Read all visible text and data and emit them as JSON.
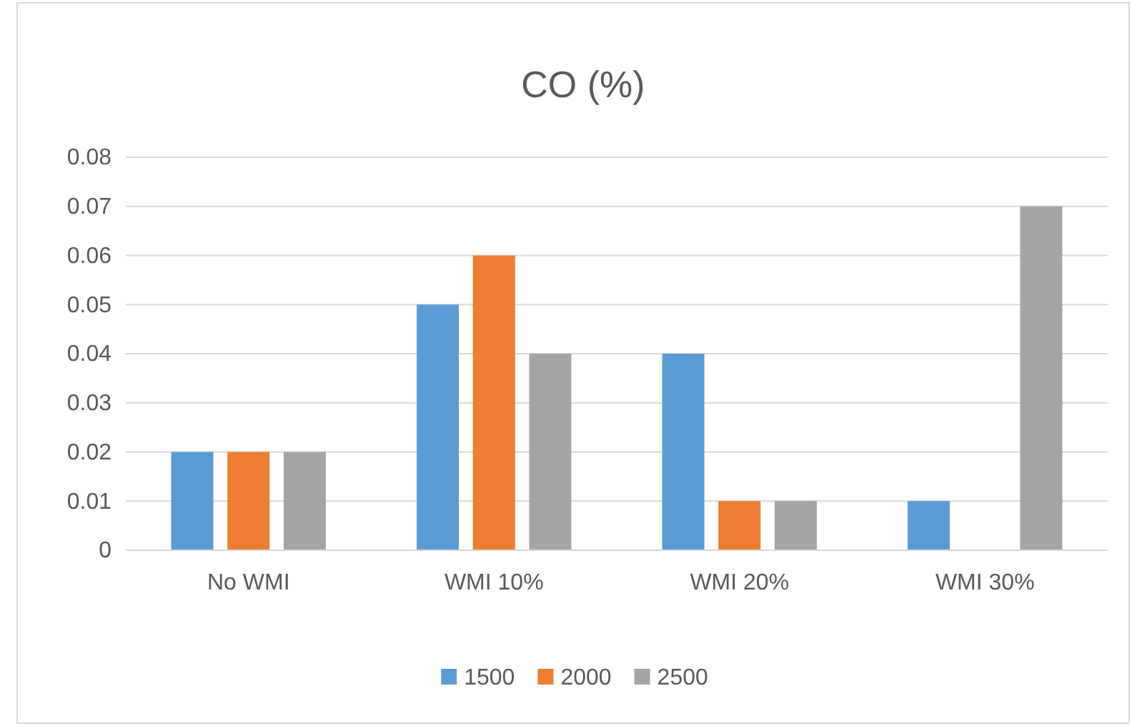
{
  "chart_data": {
    "type": "bar",
    "title": "CO (%)",
    "categories": [
      "No WMI",
      "WMI 10%",
      "WMI 20%",
      "WMI 30%"
    ],
    "series": [
      {
        "name": "1500",
        "color": "#5b9bd5",
        "values": [
          0.02,
          0.05,
          0.04,
          0.01
        ]
      },
      {
        "name": "2000",
        "color": "#ed7d31",
        "values": [
          0.02,
          0.06,
          0.01,
          0
        ]
      },
      {
        "name": "2500",
        "color": "#a5a5a5",
        "values": [
          0.02,
          0.04,
          0.01,
          0.07
        ]
      }
    ],
    "ylim": [
      0,
      0.08
    ],
    "yticks": [
      0,
      0.01,
      0.02,
      0.03,
      0.04,
      0.05,
      0.06,
      0.07,
      0.08
    ],
    "grid": "y",
    "legend": "bottom"
  }
}
